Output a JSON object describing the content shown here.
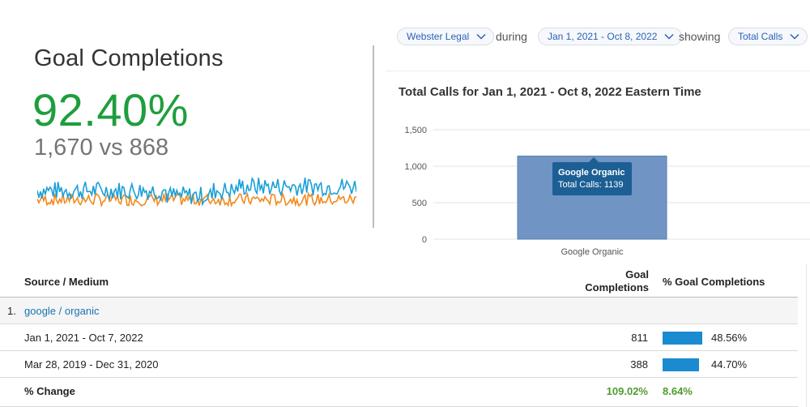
{
  "scorecard": {
    "title": "Goal Completions",
    "percent": "92.40%",
    "comparison": "1,670 vs 868",
    "colors": {
      "current": "#1aa0d8",
      "previous": "#f28a1e",
      "percent": "#1e9e3e"
    }
  },
  "filters": {
    "account": "Webster Legal",
    "during_label": "during",
    "date_range": "Jan 1, 2021 - Oct 8, 2022",
    "showing_label": "showing",
    "metric": "Total Calls",
    "dropdown_icon": "chevron-down-icon"
  },
  "chart_title": "Total Calls for Jan 1, 2021 - Oct 8, 2022 Eastern Time",
  "chart_data": {
    "type": "bar",
    "title": "Total Calls for Jan 1, 2021 - Oct 8, 2022 Eastern Time",
    "categories": [
      "Google Organic"
    ],
    "values": [
      1139
    ],
    "ylim": [
      0,
      1500
    ],
    "yticks": [
      0,
      500,
      1000,
      1500
    ],
    "ytick_labels": [
      "0",
      "500",
      "1,000",
      "1,500"
    ],
    "grid": true,
    "bar_color": "#7094c4",
    "tooltip": {
      "title": "Google Organic",
      "text": "Total Calls: 1139"
    }
  },
  "table": {
    "headers": {
      "source": "Source / Medium",
      "goal_line1": "Goal",
      "goal_line2": "Completions",
      "pct": "% Goal Completions"
    },
    "group": {
      "index": "1.",
      "label": "google / organic"
    },
    "rows": [
      {
        "label": "Jan 1, 2021 - Oct 7, 2022",
        "value": "811",
        "pct": "48.56%",
        "pct_value": 48.56
      },
      {
        "label": "Mar 28, 2019 - Dec 31, 2020",
        "value": "388",
        "pct": "44.70%",
        "pct_value": 44.7
      }
    ],
    "change": {
      "label": "% Change",
      "value": "109.02%",
      "pct": "8.64%"
    },
    "bar_color": "#1a8bd0",
    "change_color": "#4f9a2f"
  }
}
